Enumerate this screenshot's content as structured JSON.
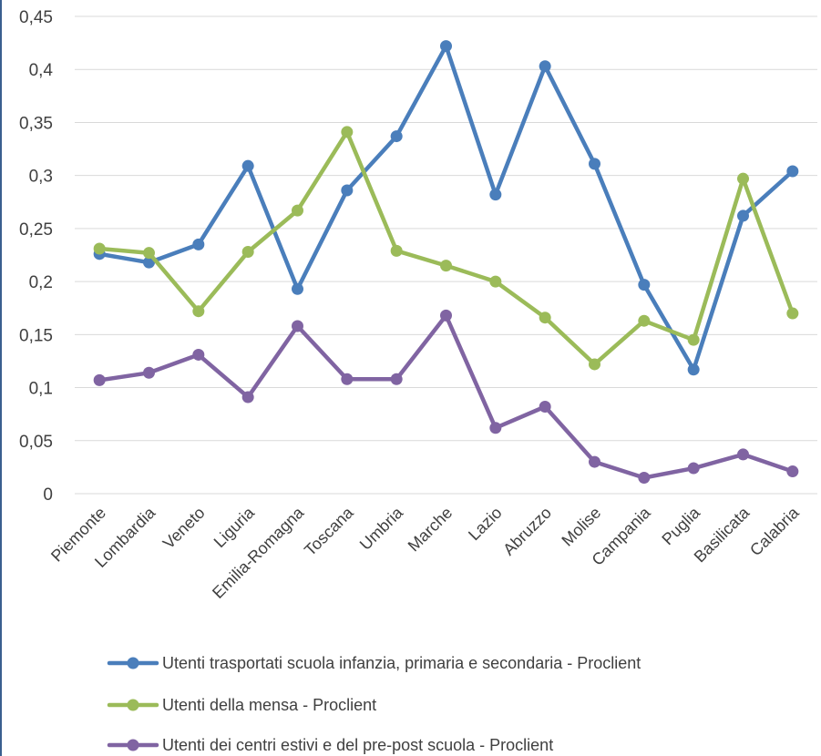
{
  "chart_data": {
    "type": "line",
    "title": "",
    "xlabel": "",
    "ylabel": "",
    "ylim": [
      0,
      0.45
    ],
    "yticks": [
      "0",
      "0,05",
      "0,1",
      "0,15",
      "0,2",
      "0,25",
      "0,3",
      "0,35",
      "0,4",
      "0,45"
    ],
    "grid": "horizontal",
    "legend_position": "bottom",
    "categories": [
      "Piemonte",
      "Lombardia",
      "Veneto",
      "Liguria",
      "Emilia-Romagna",
      "Toscana",
      "Umbria",
      "Marche",
      "Lazio",
      "Abruzzo",
      "Molise",
      "Campania",
      "Puglia",
      "Basilicata",
      "Calabria"
    ],
    "series": [
      {
        "name": "Utenti trasportati scuola infanzia, primaria e secondaria - Proclient",
        "color": "#4a7ebb",
        "values": [
          0.226,
          0.218,
          0.235,
          0.309,
          0.193,
          0.286,
          0.337,
          0.422,
          0.282,
          0.403,
          0.311,
          0.197,
          0.117,
          0.262,
          0.304
        ]
      },
      {
        "name": "Utenti della mensa - Proclient",
        "color": "#9bbb59",
        "values": [
          0.231,
          0.227,
          0.172,
          0.228,
          0.267,
          0.341,
          0.229,
          0.215,
          0.2,
          0.166,
          0.122,
          0.163,
          0.145,
          0.297,
          0.17
        ]
      },
      {
        "name": "Utenti dei centri estivi e del pre-post scuola - Proclient",
        "color": "#8064a2",
        "values": [
          0.107,
          0.114,
          0.131,
          0.091,
          0.158,
          0.108,
          0.108,
          0.168,
          0.062,
          0.082,
          0.03,
          0.015,
          0.024,
          0.037,
          0.021
        ]
      }
    ]
  }
}
